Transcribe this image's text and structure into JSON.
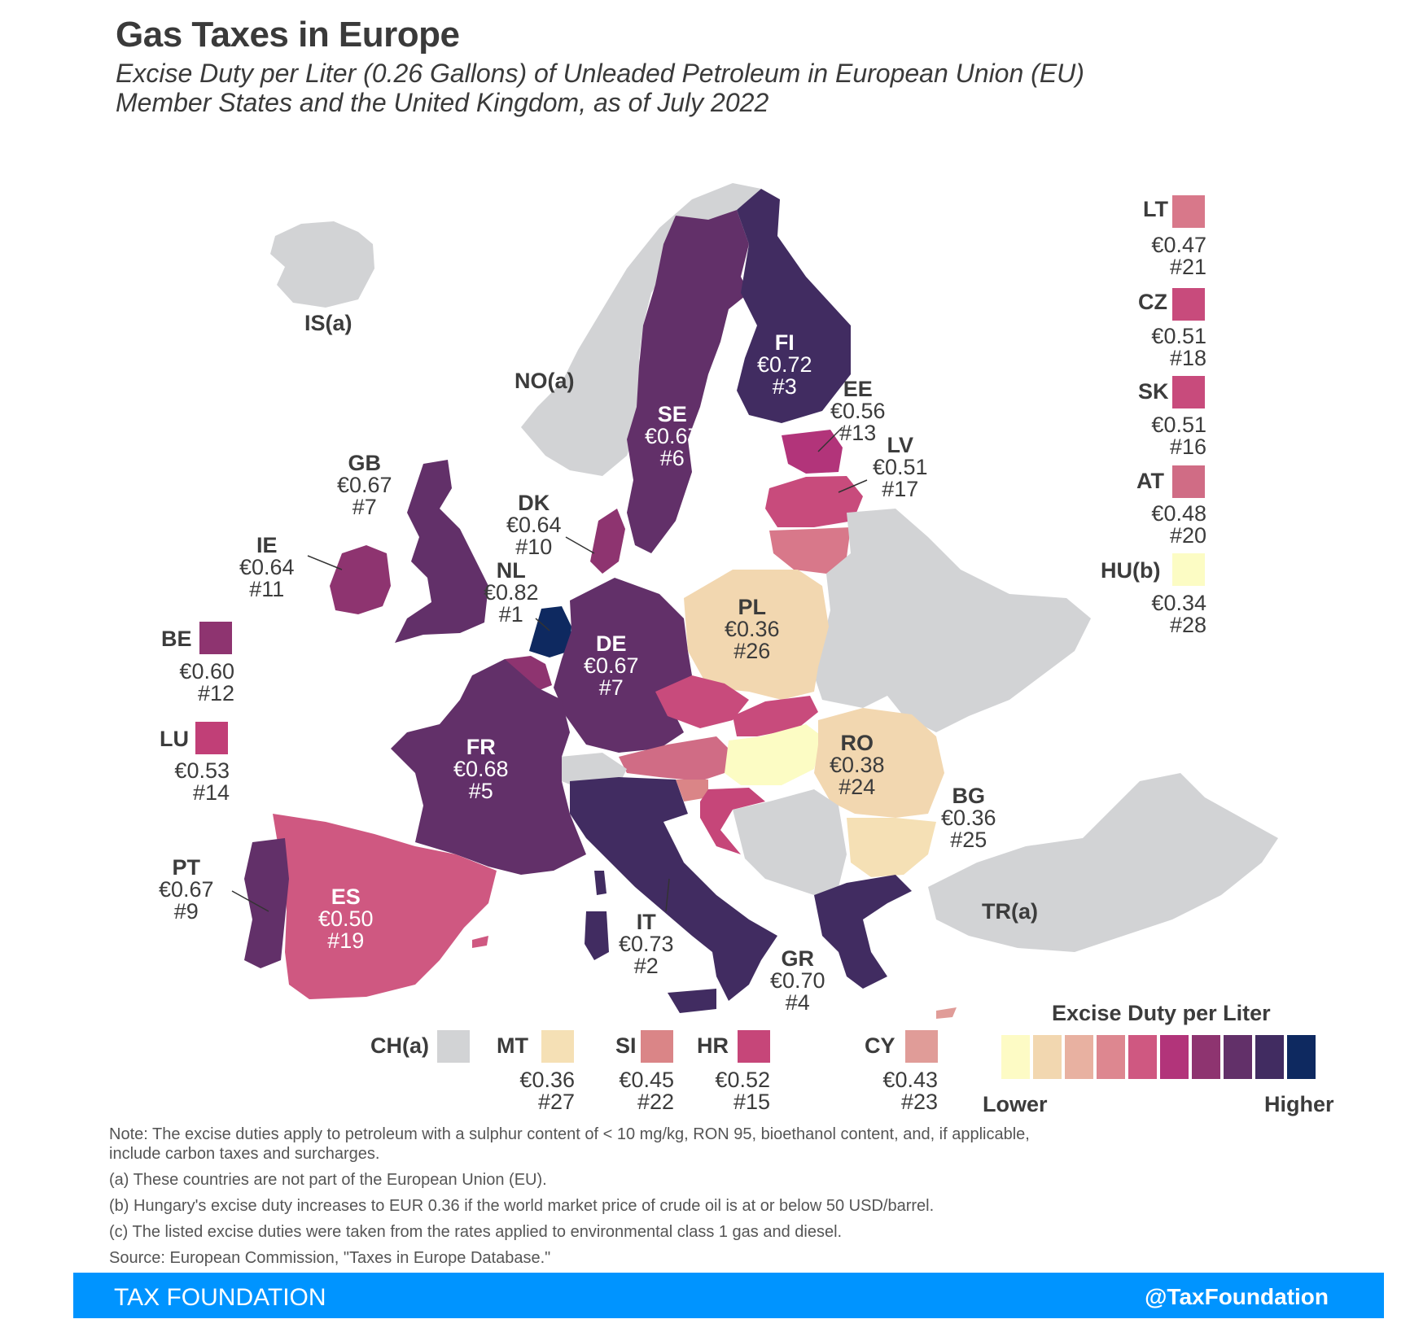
{
  "title": "Gas Taxes in Europe",
  "subtitle_line1": "Excise Duty per Liter (0.26 Gallons) of Unleaded Petroleum in European Union (EU)",
  "subtitle_line2": "Member States and the United Kingdom, as of July 2022",
  "map_labels": {
    "IS": {
      "code": "IS(a)"
    },
    "NO": {
      "code": "NO(a)"
    },
    "FI": {
      "code": "FI",
      "value": "€0.72",
      "rank": "#3"
    },
    "SE": {
      "code": "SE",
      "value": "€0.67",
      "rank": "#6"
    },
    "EE": {
      "code": "EE",
      "value": "€0.56",
      "rank": "#13"
    },
    "LV": {
      "code": "LV",
      "value": "€0.51",
      "rank": "#17"
    },
    "GB": {
      "code": "GB",
      "value": "€0.67",
      "rank": "#7"
    },
    "DK": {
      "code": "DK",
      "value": "€0.64",
      "rank": "#10"
    },
    "IE": {
      "code": "IE",
      "value": "€0.64",
      "rank": "#11"
    },
    "NL": {
      "code": "NL",
      "value": "€0.82",
      "rank": "#1"
    },
    "PL": {
      "code": "PL",
      "value": "€0.36",
      "rank": "#26"
    },
    "DE": {
      "code": "DE",
      "value": "€0.67",
      "rank": "#7"
    },
    "FR": {
      "code": "FR",
      "value": "€0.68",
      "rank": "#5"
    },
    "RO": {
      "code": "RO",
      "value": "€0.38",
      "rank": "#24"
    },
    "BG": {
      "code": "BG",
      "value": "€0.36",
      "rank": "#25"
    },
    "PT": {
      "code": "PT",
      "value": "€0.67",
      "rank": "#9"
    },
    "ES": {
      "code": "ES",
      "value": "€0.50",
      "rank": "#19"
    },
    "IT": {
      "code": "IT",
      "value": "€0.73",
      "rank": "#2"
    },
    "GR": {
      "code": "GR",
      "value": "€0.70",
      "rank": "#4"
    },
    "TR": {
      "code": "TR(a)"
    }
  },
  "side_boxes": {
    "LT": {
      "code": "LT",
      "value": "€0.47",
      "rank": "#21",
      "color": "#d8788a"
    },
    "CZ": {
      "code": "CZ",
      "value": "€0.51",
      "rank": "#18",
      "color": "#c84b7c"
    },
    "SK": {
      "code": "SK",
      "value": "€0.51",
      "rank": "#16",
      "color": "#c84b7c"
    },
    "AT": {
      "code": "AT",
      "value": "€0.48",
      "rank": "#20",
      "color": "#d06c85"
    },
    "HU": {
      "code": "HU(b)",
      "value": "€0.34",
      "rank": "#28",
      "color": "#fcfcc4"
    },
    "BE": {
      "code": "BE",
      "value": "€0.60",
      "rank": "#12",
      "color": "#8e3470"
    },
    "LU": {
      "code": "LU",
      "value": "€0.53",
      "rank": "#14",
      "color": "#c13f77"
    },
    "CH": {
      "code": "CH(a)",
      "color": "#d2d3d5"
    },
    "MT": {
      "code": "MT",
      "value": "€0.36",
      "rank": "#27",
      "color": "#f5e0b5"
    },
    "SI": {
      "code": "SI",
      "value": "€0.45",
      "rank": "#22",
      "color": "#da8587"
    },
    "HR": {
      "code": "HR",
      "value": "€0.52",
      "rank": "#15",
      "color": "#c64679"
    },
    "CY": {
      "code": "CY",
      "value": "€0.43",
      "rank": "#23",
      "color": "#e09c98"
    }
  },
  "legend": {
    "title": "Excise Duty per Liter",
    "lower": "Lower",
    "higher": "Higher",
    "colors": [
      "#fdfbc5",
      "#f2d7b0",
      "#e8b1a1",
      "#dd8790",
      "#cf5881",
      "#b2347a",
      "#8e3470",
      "#623069",
      "#412c61",
      "#0e2960"
    ]
  },
  "colors": {
    "non_eu": "#d2d3d5",
    "footer": "#0094ff"
  },
  "notes": [
    "Note: The excise duties apply to petroleum with a sulphur content of < 10 mg/kg, RON 95, bioethanol content, and, if applicable, include carbon taxes and surcharges.",
    "(a) These countries are not part of the European Union (EU).",
    "(b) Hungary's excise duty increases to EUR 0.36 if the world market price of crude oil is at or below 50 USD/barrel.",
    "(c) The listed excise duties were taken from the rates applied to environmental class 1 gas and diesel.",
    "Source: European Commission, \"Taxes in Europe Database.\""
  ],
  "footer": {
    "brand": "TAX FOUNDATION",
    "handle": "@TaxFoundation"
  }
}
